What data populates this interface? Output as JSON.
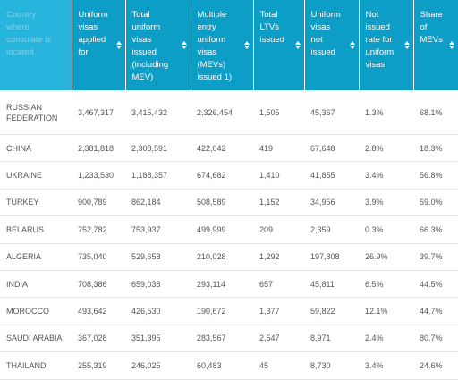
{
  "table": {
    "columns": [
      "Country where consulate is located",
      "Uniform visas applied for",
      "Total uniform visas issued (including MEV)",
      "Multiple entry uniform visas (MEVs) issued 1)",
      "Total LTVs issued",
      "Uniform visas not issued",
      "Not issued rate for uniform visas",
      "Share of MEVs"
    ],
    "rows": [
      [
        "Russian Federation",
        "3,467,317",
        "3,415,432",
        "2,326,454",
        "1,505",
        "45,367",
        "1.3%",
        "68.1%"
      ],
      [
        "China",
        "2,381,818",
        "2,308,591",
        "422,042",
        "419",
        "67,648",
        "2.8%",
        "18.3%"
      ],
      [
        "Ukraine",
        "1,233,530",
        "1,188,357",
        "674,682",
        "1,410",
        "41,855",
        "3.4%",
        "56.8%"
      ],
      [
        "Turkey",
        "900,789",
        "862,184",
        "508,589",
        "1,152",
        "34,956",
        "3.9%",
        "59.0%"
      ],
      [
        "Belarus",
        "752,782",
        "753,937",
        "499,999",
        "209",
        "2,359",
        "0.3%",
        "66.3%"
      ],
      [
        "Algeria",
        "735,040",
        "529,658",
        "210,028",
        "1,292",
        "197,808",
        "26.9%",
        "39.7%"
      ],
      [
        "India",
        "708,386",
        "659,038",
        "293,114",
        "657",
        "45,811",
        "6.5%",
        "44.5%"
      ],
      [
        "Morocco",
        "493,642",
        "426,530",
        "190,672",
        "1,377",
        "59,822",
        "12.1%",
        "44.7%"
      ],
      [
        "Saudi Arabia",
        "367,028",
        "351,395",
        "283,567",
        "2,547",
        "8,971",
        "2.4%",
        "80.7%"
      ],
      [
        "Thailand",
        "255,319",
        "246,025",
        "60,483",
        "45",
        "8,730",
        "3.4%",
        "24.6%"
      ]
    ]
  }
}
